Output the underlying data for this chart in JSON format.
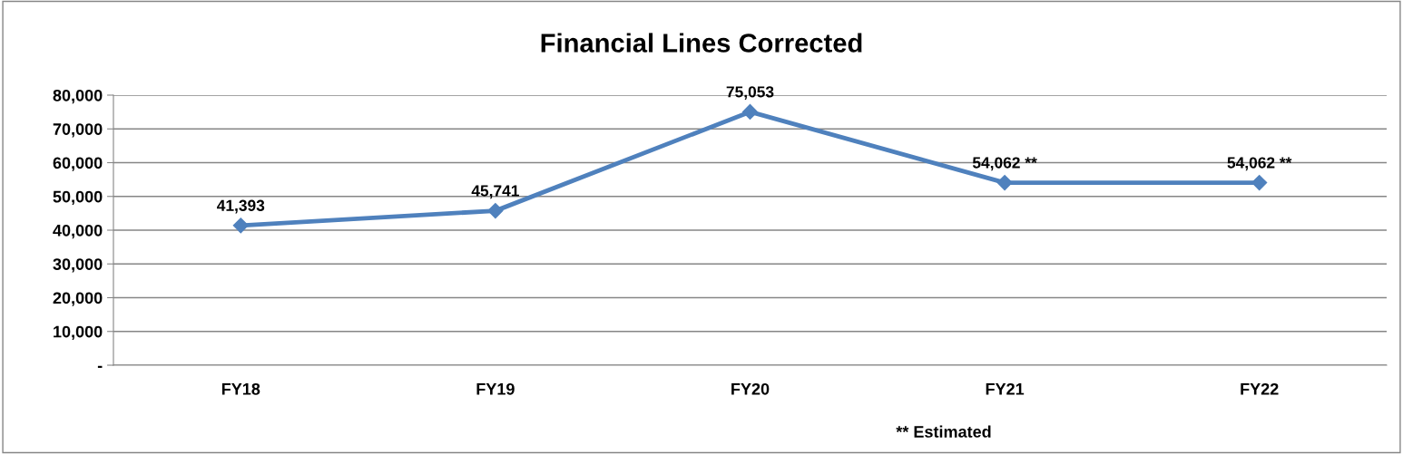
{
  "chart_data": {
    "type": "line",
    "title": "Financial Lines Corrected",
    "categories": [
      "FY18",
      "FY19",
      "FY20",
      "FY21",
      "FY22"
    ],
    "series": [
      {
        "color": "#4f81bd",
        "values": [
          41393,
          45741,
          75053,
          54062,
          54062
        ],
        "value_labels": [
          "41,393",
          "45,741",
          "75,053",
          "54,062 **",
          "54,062 **"
        ]
      }
    ],
    "ylim": [
      0,
      80000
    ],
    "yticks": [
      {
        "value": 0,
        "label": "-"
      },
      {
        "value": 10000,
        "label": "10,000"
      },
      {
        "value": 20000,
        "label": "20,000"
      },
      {
        "value": 30000,
        "label": "30,000"
      },
      {
        "value": 40000,
        "label": "40,000"
      },
      {
        "value": 50000,
        "label": "50,000"
      },
      {
        "value": 60000,
        "label": "60,000"
      },
      {
        "value": 70000,
        "label": "70,000"
      },
      {
        "value": 80000,
        "label": "80,000"
      }
    ],
    "grid": "y",
    "marker": "diamond",
    "line_style": "solid",
    "legend": false,
    "annotations": [
      "** Estimated"
    ]
  }
}
